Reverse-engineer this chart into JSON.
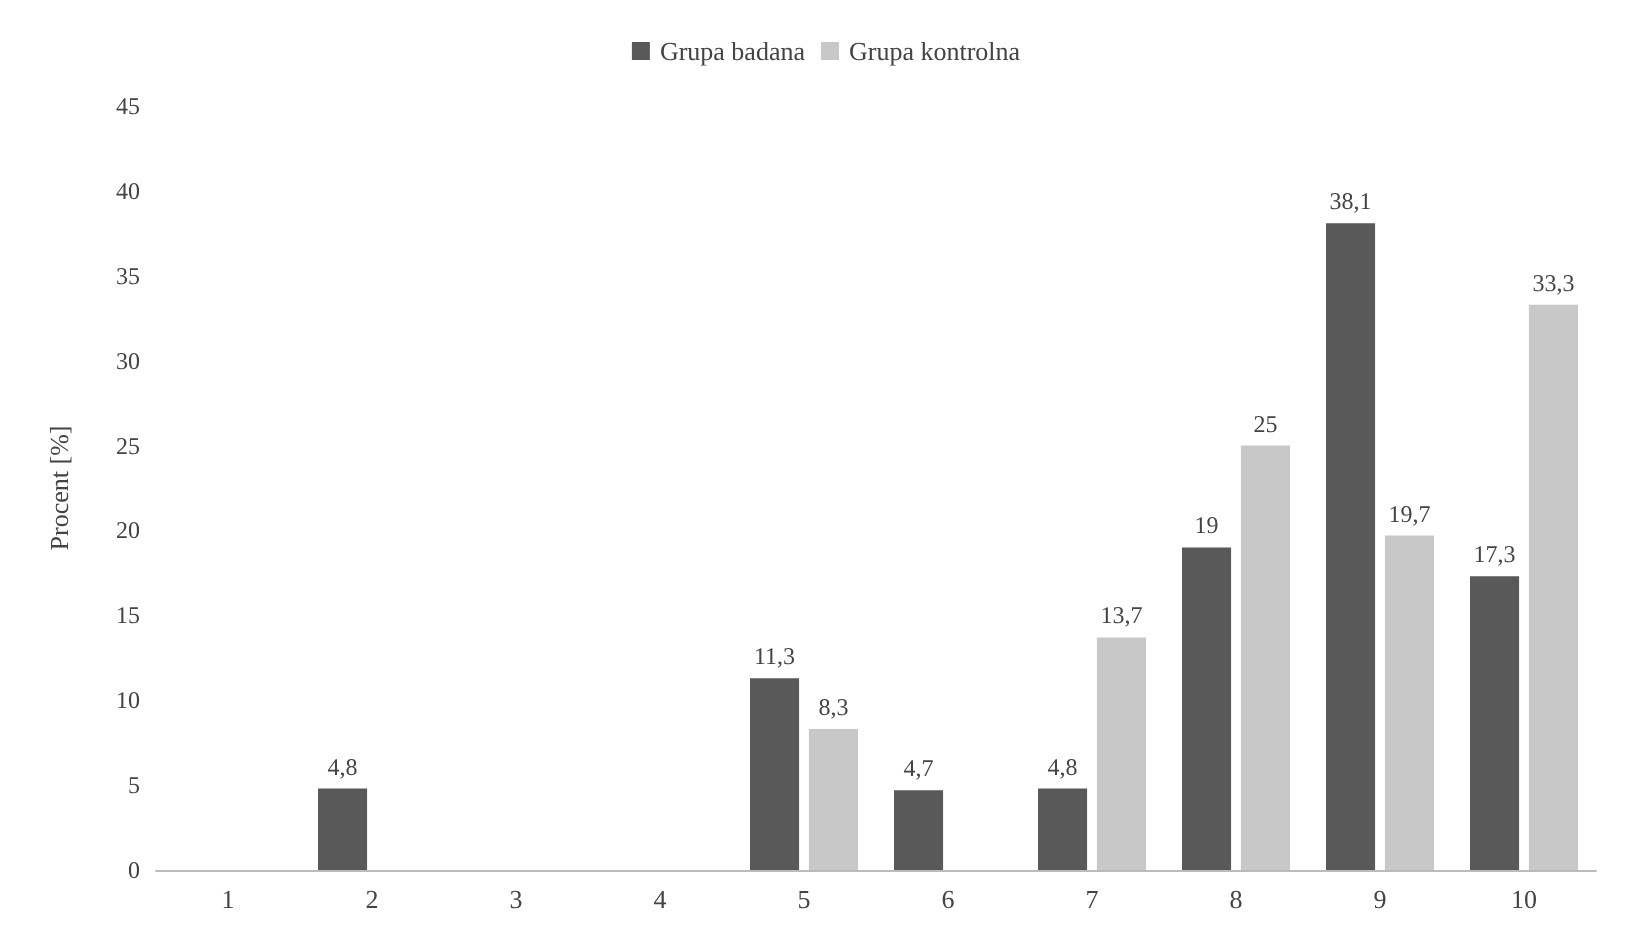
{
  "chart_data": {
    "type": "bar",
    "ylabel": "Procent [%]",
    "categories": [
      "1",
      "2",
      "3",
      "4",
      "5",
      "6",
      "7",
      "8",
      "9",
      "10"
    ],
    "series": [
      {
        "name": "Grupa badana",
        "color": "#595959",
        "values": [
          null,
          4.8,
          null,
          null,
          11.3,
          4.7,
          4.8,
          19,
          38.1,
          17.3
        ],
        "value_labels": [
          null,
          "4,8",
          null,
          null,
          "11,3",
          "4,7",
          "4,8",
          "19",
          "38,1",
          "17,3"
        ]
      },
      {
        "name": "Grupa kontrolna",
        "color": "#c8c8c8",
        "values": [
          null,
          null,
          null,
          null,
          8.3,
          null,
          13.7,
          25,
          19.7,
          33.3
        ],
        "value_labels": [
          null,
          null,
          null,
          null,
          "8,3",
          null,
          "13,7",
          "25",
          "19,7",
          "33,3"
        ]
      }
    ],
    "ylim": [
      0,
      45
    ],
    "yticks": [
      0,
      5,
      10,
      15,
      20,
      25,
      30,
      35,
      40,
      45
    ],
    "grid": false,
    "legend": "top"
  }
}
